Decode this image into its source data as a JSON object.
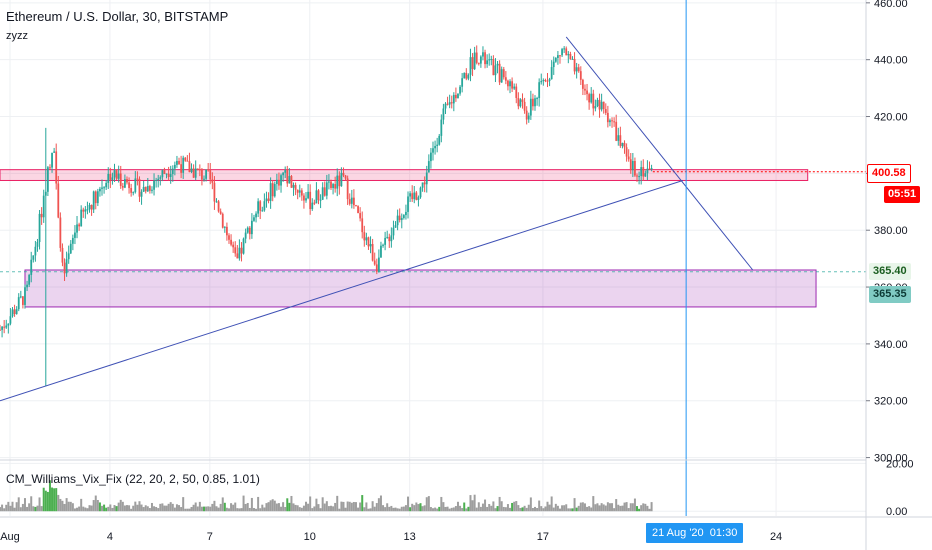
{
  "header": {
    "title": "Ethereum / U.S. Dollar, 30, BITSTAMP",
    "author": "zyzz"
  },
  "indicator": {
    "label": "CM_Williams_Vix_Fix (22, 20, 2, 50, 0.85, 1.01)"
  },
  "price_tags": {
    "last_price": "400.58",
    "countdown": "05:51",
    "support_upper": "365.40",
    "support_lower": "365.35"
  },
  "crosshair": {
    "date": "21 Aug '20",
    "time": "01:30"
  },
  "colors": {
    "up": "#26a69a",
    "down": "#ef5350",
    "resistance_zone": "#e91e63",
    "support_zone": "#9c27b0",
    "trendline": "#3f51b5",
    "crosshair": "#2196f3",
    "last_price": "#ff0000"
  },
  "chart_data": {
    "type": "candlestick",
    "y_axis": {
      "ticks": [
        300,
        320,
        340,
        360,
        380,
        400,
        420,
        440,
        460
      ],
      "tick_labels": [
        "300.00",
        "320.00",
        "340.00",
        "360.00",
        "380.00",
        "400.00",
        "420.00",
        "440.00",
        "460.00"
      ],
      "range": [
        299.5,
        461
      ]
    },
    "x_axis": {
      "ticks": [
        1,
        4,
        7,
        10,
        13,
        17,
        24
      ],
      "tick_labels": [
        "Aug",
        "4",
        "7",
        "10",
        "13",
        "17",
        "24"
      ],
      "range_days": [
        0.7,
        26.7
      ]
    },
    "indicator_axis": {
      "ticks": [
        0,
        20
      ],
      "tick_labels": [
        "0.00",
        "20.00"
      ],
      "range": [
        -2,
        21
      ]
    },
    "key_points": [
      {
        "day": 0.7,
        "price": 345
      },
      {
        "day": 1.5,
        "price": 358
      },
      {
        "day": 2.0,
        "price": 390
      },
      {
        "day": 2.3,
        "price": 412
      },
      {
        "day": 2.6,
        "price": 362
      },
      {
        "day": 3.0,
        "price": 382
      },
      {
        "day": 4.0,
        "price": 400
      },
      {
        "day": 5.0,
        "price": 394
      },
      {
        "day": 6.0,
        "price": 404
      },
      {
        "day": 7.0,
        "price": 398
      },
      {
        "day": 7.8,
        "price": 368
      },
      {
        "day": 8.3,
        "price": 385
      },
      {
        "day": 9.2,
        "price": 400
      },
      {
        "day": 10.0,
        "price": 390
      },
      {
        "day": 11.0,
        "price": 398
      },
      {
        "day": 12.0,
        "price": 368
      },
      {
        "day": 12.6,
        "price": 384
      },
      {
        "day": 13.4,
        "price": 396
      },
      {
        "day": 14.0,
        "price": 420
      },
      {
        "day": 15.0,
        "price": 442
      },
      {
        "day": 16.0,
        "price": 432
      },
      {
        "day": 16.5,
        "price": 420
      },
      {
        "day": 17.0,
        "price": 432
      },
      {
        "day": 17.6,
        "price": 444
      },
      {
        "day": 18.3,
        "price": 428
      },
      {
        "day": 19.0,
        "price": 420
      },
      {
        "day": 19.6,
        "price": 402
      },
      {
        "day": 20.3,
        "price": 400.58
      }
    ],
    "resistance_zone": {
      "day_start": 0.7,
      "day_end": 24.95,
      "price_low": 397.5,
      "price_high": 401.3
    },
    "support_zone": {
      "day_start": 1.45,
      "day_end": 25.2,
      "price_low": 353,
      "price_high": 366
    },
    "trendlines": [
      {
        "from": {
          "day": 0.7,
          "price": 320
        },
        "to": {
          "day": 21.2,
          "price": 397.5
        }
      },
      {
        "from": {
          "day": 17.7,
          "price": 448
        },
        "to": {
          "day": 23.3,
          "price": 366
        }
      }
    ],
    "wick_extremes": [
      {
        "day": 2.1,
        "high": 416,
        "low": 325
      },
      {
        "day": 20.35,
        "high": 402,
        "low": 395
      }
    ],
    "last_price_line": 400.58,
    "support_level_line": 365.4,
    "crosshair_day": 21.3
  }
}
